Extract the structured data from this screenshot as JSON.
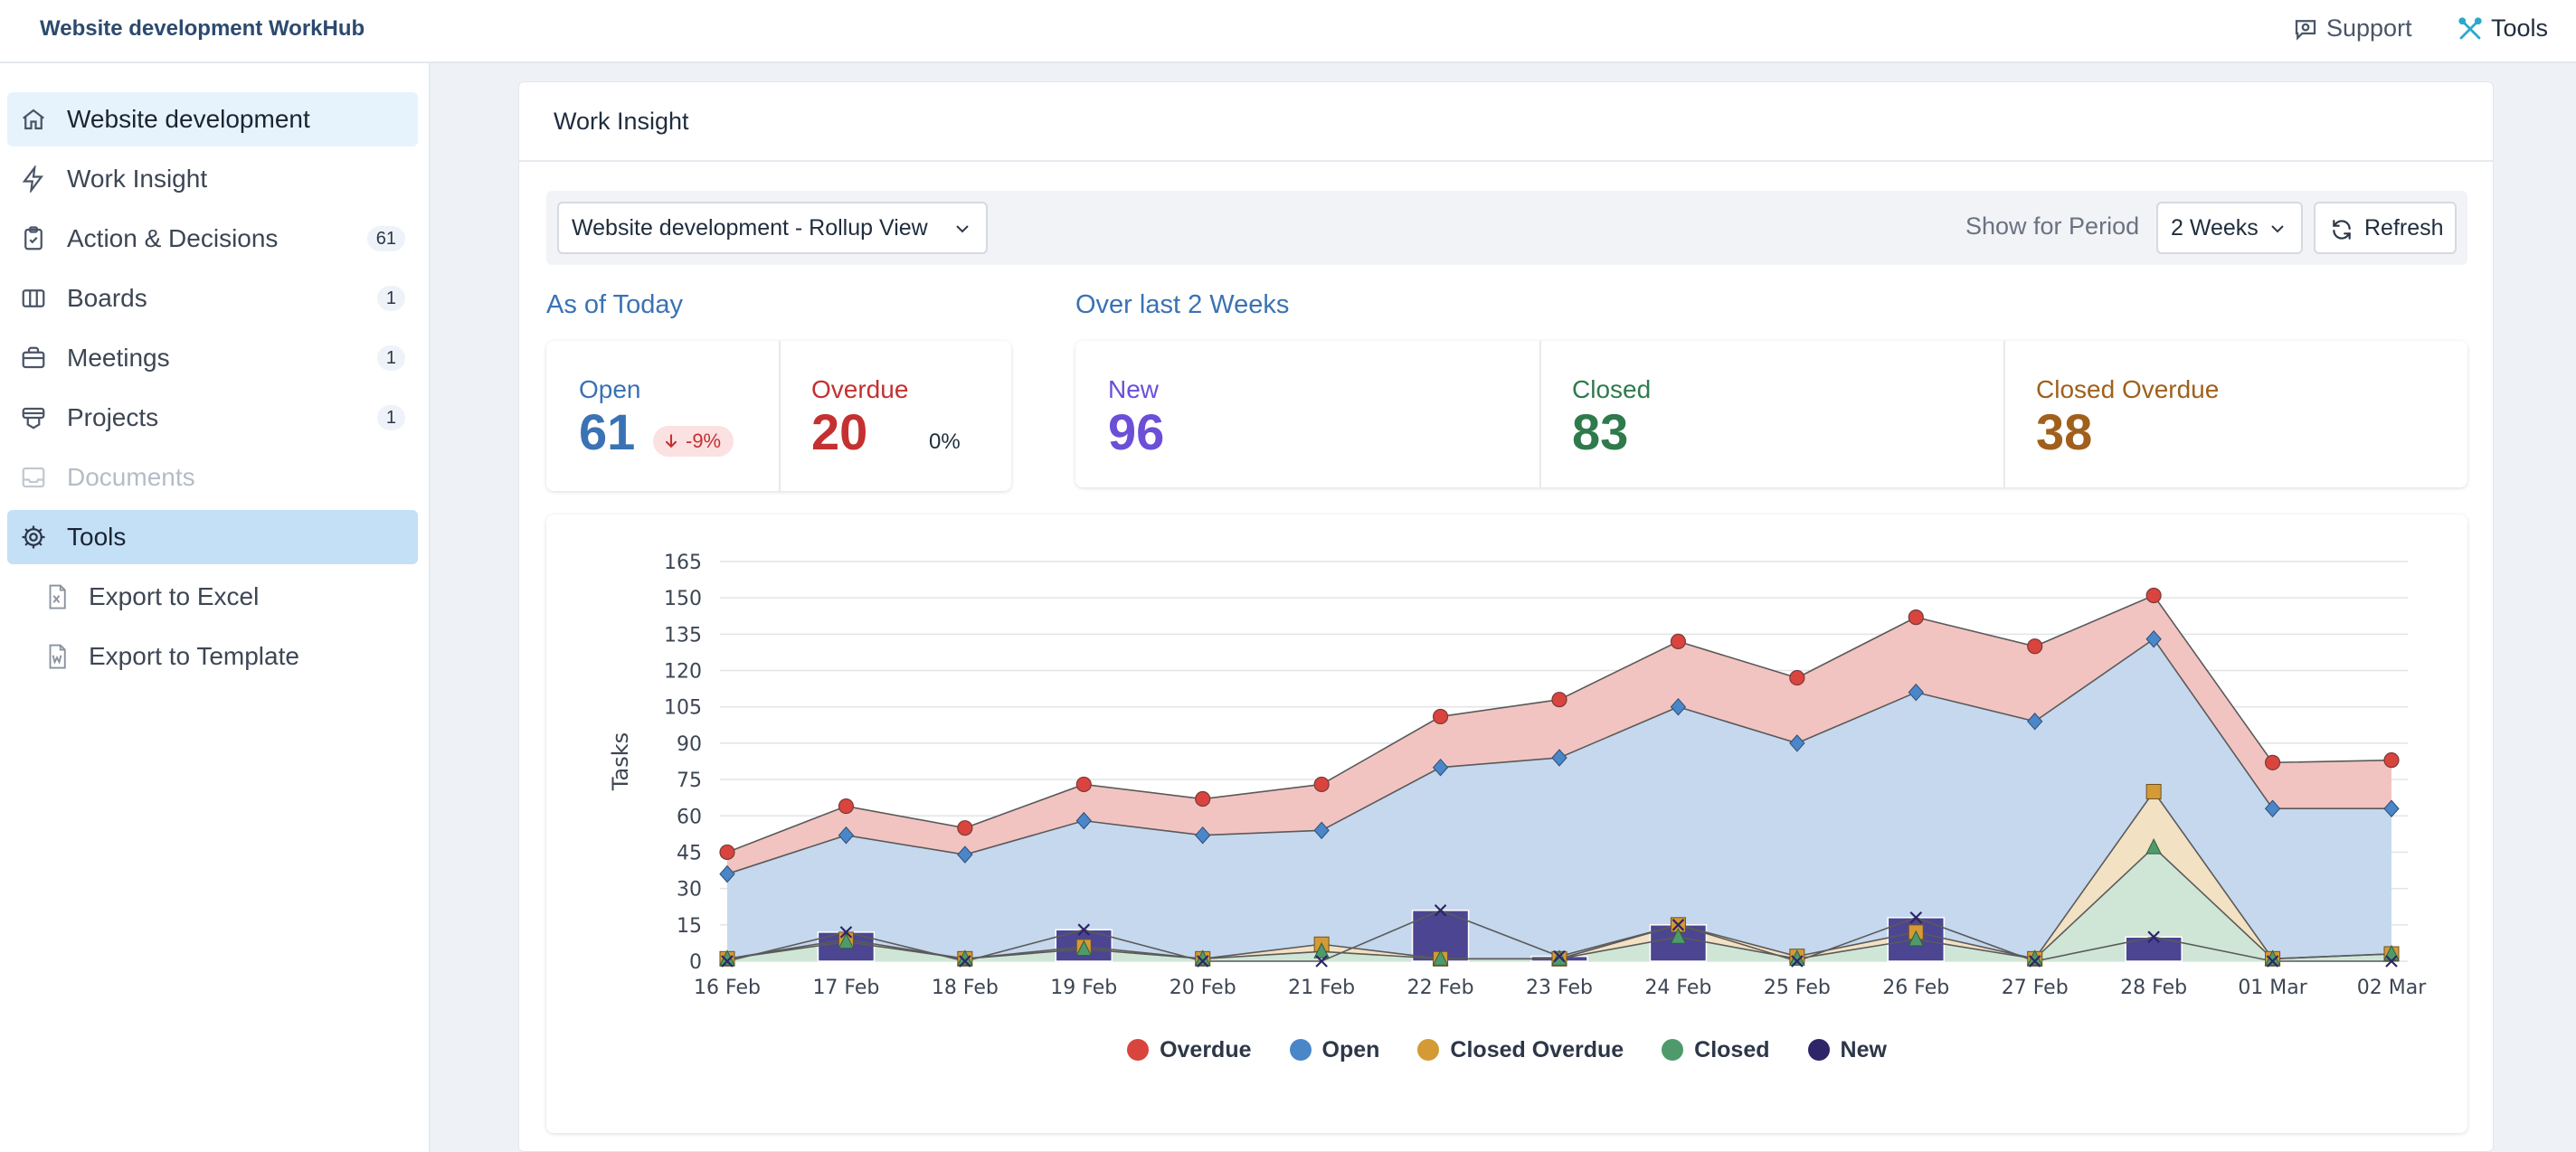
{
  "app": {
    "title": "Website development WorkHub"
  },
  "topnav": {
    "support": "Support",
    "tools": "Tools"
  },
  "sidebar": {
    "items": [
      {
        "label": "Website development",
        "icon": "home-icon"
      },
      {
        "label": "Work Insight",
        "icon": "bolt-icon"
      },
      {
        "label": "Action & Decisions",
        "icon": "clipboard-icon",
        "count": "61"
      },
      {
        "label": "Boards",
        "icon": "columns-icon",
        "count": "1"
      },
      {
        "label": "Meetings",
        "icon": "briefcase-icon",
        "count": "1"
      },
      {
        "label": "Projects",
        "icon": "projects-icon",
        "count": "1"
      },
      {
        "label": "Documents",
        "icon": "inbox-icon"
      },
      {
        "label": "Tools",
        "icon": "gear-icon"
      }
    ],
    "sub_items": [
      {
        "label": "Export to Excel",
        "icon": "excel-file-icon"
      },
      {
        "label": "Export to Template",
        "icon": "word-file-icon"
      }
    ]
  },
  "main": {
    "title": "Work Insight",
    "view_select": "Website development - Rollup View",
    "period_label": "Show for Period",
    "period_select": "2 Weeks",
    "refresh": "Refresh",
    "today": {
      "title": "As of Today",
      "open_label": "Open",
      "open_value": "61",
      "open_change": "-9%",
      "overdue_label": "Overdue",
      "overdue_value": "20",
      "overdue_change": "0%"
    },
    "period": {
      "title": "Over last 2 Weeks",
      "new_label": "New",
      "new_value": "96",
      "closed_label": "Closed",
      "closed_value": "83",
      "closed_overdue_label": "Closed Overdue",
      "closed_overdue_value": "38"
    }
  },
  "colors": {
    "overdue": "#d9443f",
    "open": "#4a86c8",
    "closed_overdue": "#d49a36",
    "closed": "#4f9a6b",
    "new": "#2e2468",
    "accent_blue": "#3a72b4"
  },
  "chart_data": {
    "type": "area",
    "ylabel": "Tasks",
    "ylim": [
      0,
      165
    ],
    "yticks": [
      0,
      15,
      30,
      45,
      60,
      75,
      90,
      105,
      120,
      135,
      150,
      165
    ],
    "grid": true,
    "legend_position": "bottom",
    "categories": [
      "16 Feb",
      "17 Feb",
      "18 Feb",
      "19 Feb",
      "20 Feb",
      "21 Feb",
      "22 Feb",
      "23 Feb",
      "24 Feb",
      "25 Feb",
      "26 Feb",
      "27 Feb",
      "28 Feb",
      "01 Mar",
      "02 Mar"
    ],
    "series": [
      {
        "name": "Overdue",
        "marker": "circle",
        "values": [
          45,
          64,
          55,
          73,
          67,
          73,
          101,
          108,
          132,
          117,
          142,
          130,
          151,
          82,
          83
        ]
      },
      {
        "name": "Open",
        "marker": "diamond",
        "values": [
          36,
          52,
          44,
          58,
          52,
          54,
          80,
          84,
          105,
          90,
          111,
          99,
          133,
          63,
          63
        ]
      },
      {
        "name": "Closed Overdue",
        "marker": "square",
        "values": [
          1,
          9,
          1,
          6,
          1,
          7,
          1,
          1,
          15,
          2,
          12,
          1,
          70,
          1,
          3
        ]
      },
      {
        "name": "Closed",
        "marker": "triangle",
        "values": [
          1,
          8,
          1,
          5,
          1,
          4,
          1,
          1,
          10,
          1,
          9,
          1,
          47,
          1,
          3
        ]
      },
      {
        "name": "New",
        "marker": "bar",
        "values": [
          0,
          12,
          0,
          13,
          0,
          0,
          21,
          2,
          15,
          0,
          18,
          0,
          10,
          0,
          0
        ]
      }
    ]
  }
}
